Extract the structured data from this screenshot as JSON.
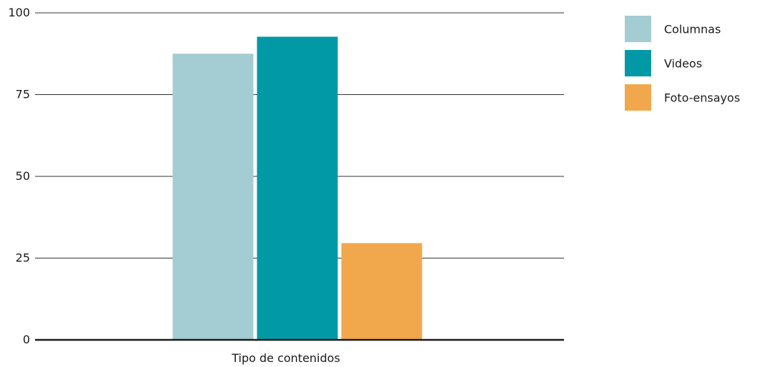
{
  "chart_data": {
    "type": "bar",
    "categories": [
      "Tipo de contenidos"
    ],
    "series": [
      {
        "name": "Columnas",
        "values": [
          87.5
        ],
        "color": "#a4ccd3"
      },
      {
        "name": "Videos",
        "values": [
          92.7
        ],
        "color": "#0099a5"
      },
      {
        "name": "Foto-ensayos",
        "values": [
          29.6
        ],
        "color": "#f1a84c"
      }
    ],
    "xlabel": "Tipo de contenidos",
    "ylabel": "",
    "ylim": [
      0,
      100
    ],
    "yticks": [
      0,
      25,
      50,
      75,
      100
    ],
    "grid": true,
    "legend_position": "top-right"
  }
}
